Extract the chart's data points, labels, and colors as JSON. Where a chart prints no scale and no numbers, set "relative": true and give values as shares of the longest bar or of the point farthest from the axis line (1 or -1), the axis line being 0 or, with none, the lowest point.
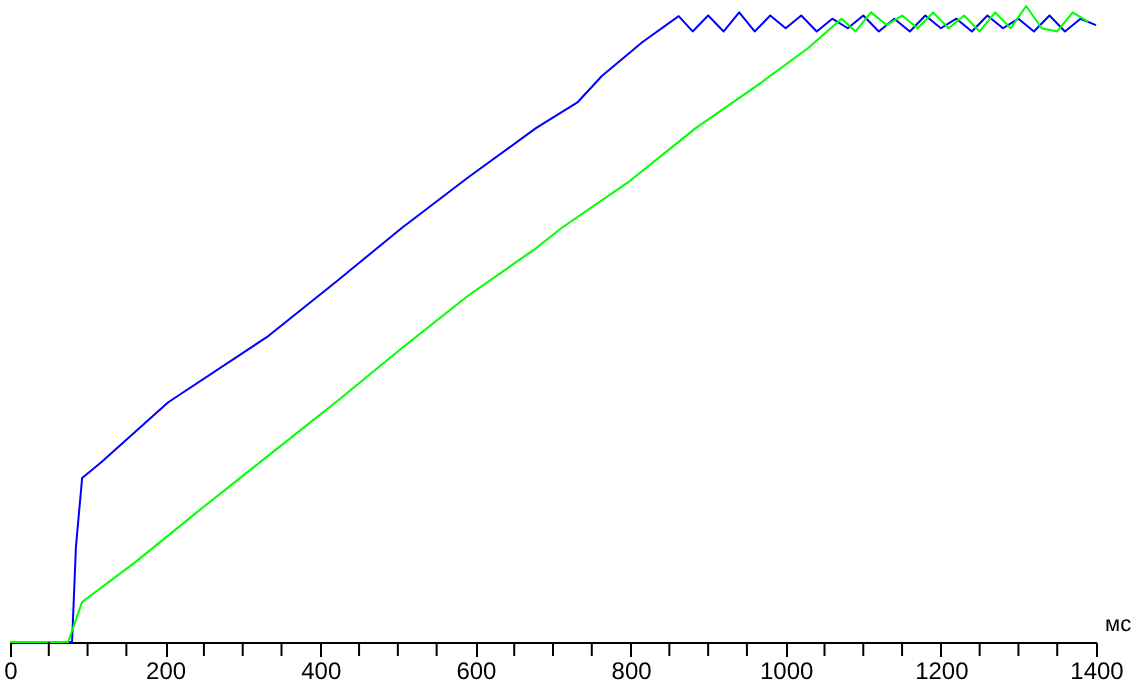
{
  "chart_data": {
    "type": "line",
    "relative": true,
    "xlabel": "мс",
    "xlim": [
      0,
      1400
    ],
    "xticks": [
      0,
      {
        "value": 50,
        "label": null
      },
      {
        "value": 100,
        "label": null
      },
      {
        "value": 150,
        "label": null
      },
      200,
      {
        "value": 250,
        "label": null
      },
      {
        "value": 300,
        "label": null
      },
      {
        "value": 350,
        "label": null
      },
      400,
      {
        "value": 450,
        "label": null
      },
      {
        "value": 500,
        "label": null
      },
      {
        "value": 550,
        "label": null
      },
      600,
      {
        "value": 650,
        "label": null
      },
      {
        "value": 700,
        "label": null
      },
      {
        "value": 750,
        "label": null
      },
      800,
      {
        "value": 850,
        "label": null
      },
      {
        "value": 900,
        "label": null
      },
      {
        "value": 950,
        "label": null
      },
      1000,
      {
        "value": 1050,
        "label": null
      },
      {
        "value": 1100,
        "label": null
      },
      {
        "value": 1150,
        "label": null
      },
      1200,
      {
        "value": 1250,
        "label": null
      },
      {
        "value": 1300,
        "label": null
      },
      {
        "value": 1350,
        "label": null
      },
      1400
    ],
    "grid": false,
    "marker": "none",
    "line_style": "solid",
    "series": [
      {
        "color": "#0000ff",
        "x": [
          0,
          80,
          85,
          93,
          118,
          204,
          333,
          420,
          505,
          590,
          678,
          732,
          763,
          815,
          862,
          880,
          900,
          920,
          940,
          960,
          980,
          1000,
          1020,
          1040,
          1060,
          1080,
          1100,
          1120,
          1140,
          1160,
          1180,
          1200,
          1220,
          1240,
          1260,
          1280,
          1300,
          1320,
          1340,
          1360,
          1380,
          1400
        ],
        "values": [
          0,
          0,
          0.15,
          0.258,
          0.283,
          0.377,
          0.481,
          0.566,
          0.651,
          0.73,
          0.808,
          0.849,
          0.89,
          0.943,
          0.984,
          0.96,
          0.985,
          0.96,
          0.99,
          0.96,
          0.985,
          0.965,
          0.985,
          0.96,
          0.98,
          0.965,
          0.985,
          0.96,
          0.98,
          0.96,
          0.985,
          0.965,
          0.98,
          0.96,
          0.985,
          0.965,
          0.98,
          0.96,
          0.985,
          0.96,
          0.98,
          0.97
        ]
      },
      {
        "color": "#00ff00",
        "x": [
          0,
          75,
          93,
          162,
          247,
          333,
          420,
          505,
          590,
          678,
          711,
          797,
          884,
          969,
          1029,
          1072,
          1090,
          1110,
          1130,
          1150,
          1170,
          1190,
          1210,
          1230,
          1250,
          1270,
          1290,
          1310,
          1330,
          1350,
          1370,
          1390
        ],
        "values": [
          0,
          0,
          0.063,
          0.126,
          0.21,
          0.293,
          0.377,
          0.462,
          0.544,
          0.619,
          0.651,
          0.723,
          0.808,
          0.88,
          0.934,
          0.98,
          0.96,
          0.99,
          0.97,
          0.985,
          0.965,
          0.99,
          0.965,
          0.985,
          0.96,
          0.99,
          0.965,
          1.0,
          0.965,
          0.96,
          0.99,
          0.975
        ]
      }
    ]
  }
}
